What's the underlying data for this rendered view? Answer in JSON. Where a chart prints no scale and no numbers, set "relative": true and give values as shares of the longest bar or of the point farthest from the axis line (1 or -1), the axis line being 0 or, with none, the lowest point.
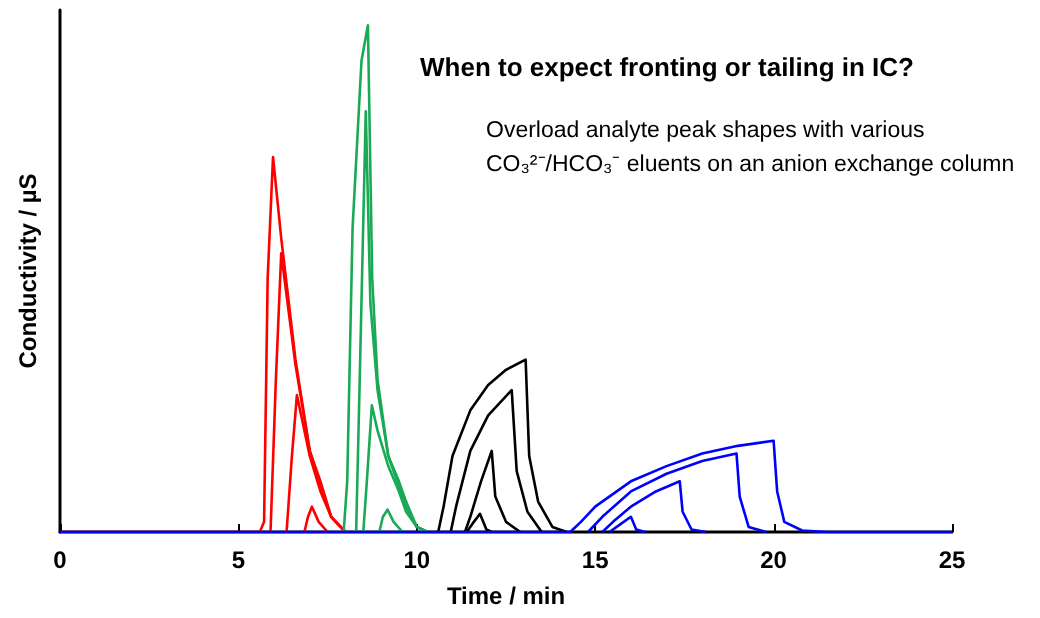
{
  "chart_data": {
    "type": "line",
    "title": "When to expect fronting or tailing in IC?",
    "subtitle": "Overload analyte peak shapes with various\nCO₃²⁻/HCO₃⁻ eluents on an anion exchange column",
    "xlabel": "Time / min",
    "ylabel": "Conductivity / µS",
    "relative": true,
    "tick_labels": "x",
    "xlim": [
      0,
      25
    ],
    "xticks": [
      0,
      5,
      10,
      15,
      20,
      25
    ],
    "marker": "none",
    "line_style": "solid",
    "series": [
      {
        "color": "#ff0000",
        "x": [
          0,
          5.6,
          5.72,
          5.82,
          5.97,
          6.2,
          6.6,
          7.0,
          7.3,
          7.6,
          8.0
        ],
        "values": [
          0,
          0,
          0.02,
          0.5,
          0.74,
          0.58,
          0.34,
          0.16,
          0.1,
          0.03,
          0
        ]
      },
      {
        "color": "#ff0000",
        "x": [
          5.9,
          6.05,
          6.2,
          6.6,
          7.0,
          7.3,
          7.6,
          8.0
        ],
        "values": [
          0,
          0.3,
          0.55,
          0.33,
          0.16,
          0.09,
          0.03,
          0
        ]
      },
      {
        "color": "#ff0000",
        "x": [
          6.35,
          6.5,
          6.64,
          7.0,
          7.3,
          7.6,
          8.0
        ],
        "values": [
          0,
          0.15,
          0.27,
          0.15,
          0.08,
          0.03,
          0
        ]
      },
      {
        "color": "#ff0000",
        "x": [
          6.85,
          6.95,
          7.06,
          7.25,
          7.5
        ],
        "values": [
          0,
          0.03,
          0.05,
          0.02,
          0
        ]
      },
      {
        "color": "#1aaa55",
        "x": [
          7.95,
          8.05,
          8.2,
          8.45,
          8.63,
          8.75,
          8.9,
          9.2,
          9.5,
          9.7,
          10.0,
          10.3
        ],
        "values": [
          0,
          0.1,
          0.6,
          0.93,
          1,
          0.5,
          0.3,
          0.15,
          0.1,
          0.06,
          0.01,
          0
        ]
      },
      {
        "color": "#1aaa55",
        "x": [
          8.3,
          8.4,
          8.57,
          8.7,
          8.9,
          9.2,
          9.5,
          9.7,
          10.0,
          10.3
        ],
        "values": [
          0,
          0.3,
          0.83,
          0.45,
          0.28,
          0.15,
          0.09,
          0.05,
          0.01,
          0
        ]
      },
      {
        "color": "#1aaa55",
        "x": [
          8.5,
          8.6,
          8.74,
          8.9,
          9.2,
          9.5,
          9.7,
          10.0,
          10.3
        ],
        "values": [
          0,
          0.1,
          0.25,
          0.2,
          0.13,
          0.08,
          0.04,
          0.01,
          0
        ]
      },
      {
        "color": "#1aaa55",
        "x": [
          8.95,
          9.05,
          9.18,
          9.35,
          9.6
        ],
        "values": [
          0,
          0.03,
          0.044,
          0.02,
          0
        ]
      },
      {
        "color": "#000000",
        "x": [
          10.6,
          10.75,
          11.0,
          11.5,
          12.0,
          12.5,
          13.05,
          13.15,
          13.4,
          13.8,
          14.2
        ],
        "values": [
          0,
          0.05,
          0.15,
          0.24,
          0.29,
          0.32,
          0.34,
          0.15,
          0.06,
          0.01,
          0
        ]
      },
      {
        "color": "#000000",
        "x": [
          10.95,
          11.1,
          11.5,
          12.0,
          12.66,
          12.8,
          13.1,
          13.5
        ],
        "values": [
          0,
          0.05,
          0.16,
          0.23,
          0.28,
          0.12,
          0.04,
          0
        ]
      },
      {
        "color": "#000000",
        "x": [
          11.35,
          11.5,
          11.8,
          12.1,
          12.2,
          12.5,
          12.9
        ],
        "values": [
          0,
          0.03,
          0.1,
          0.16,
          0.07,
          0.02,
          0
        ]
      },
      {
        "color": "#000000",
        "x": [
          11.4,
          11.6,
          11.77,
          11.95,
          12.1
        ],
        "values": [
          0,
          0.02,
          0.036,
          0.005,
          0
        ]
      },
      {
        "color": "#0000ff",
        "x": [
          0,
          14.3,
          14.6,
          15.0,
          16,
          17,
          18,
          19,
          20.0,
          20.1,
          20.3,
          20.8,
          21.5,
          25
        ],
        "values": [
          0,
          0,
          0.02,
          0.05,
          0.1,
          0.13,
          0.155,
          0.17,
          0.18,
          0.08,
          0.02,
          0.003,
          0,
          0
        ]
      },
      {
        "color": "#0000ff",
        "x": [
          14.8,
          15.2,
          16,
          17,
          18,
          18.96,
          19.05,
          19.3,
          19.8
        ],
        "values": [
          0,
          0.03,
          0.08,
          0.115,
          0.14,
          0.155,
          0.07,
          0.01,
          0
        ]
      },
      {
        "color": "#0000ff",
        "x": [
          15.2,
          15.5,
          16,
          16.7,
          17.37,
          17.45,
          17.7,
          18.1
        ],
        "values": [
          0,
          0.02,
          0.05,
          0.08,
          0.1,
          0.04,
          0.005,
          0
        ]
      },
      {
        "color": "#0000ff",
        "x": [
          15.4,
          15.7,
          16.0,
          16.15,
          16.4
        ],
        "values": [
          0,
          0.015,
          0.03,
          0.005,
          0
        ]
      }
    ]
  }
}
